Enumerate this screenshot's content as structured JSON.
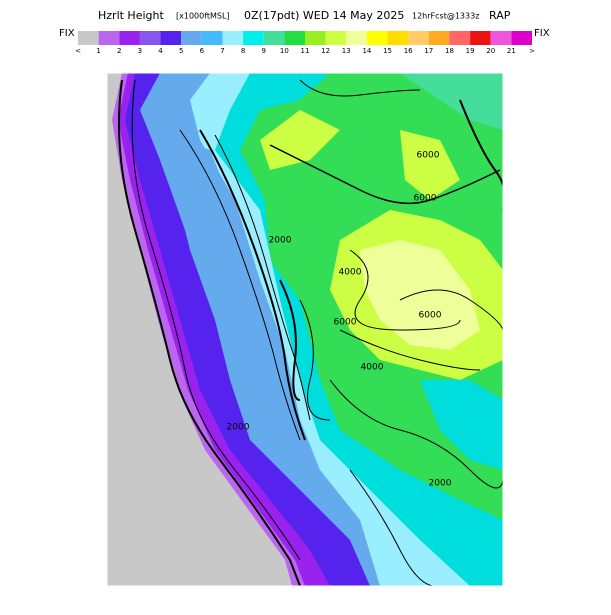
{
  "header": {
    "title": "Hzrlt Height",
    "units": "[x1000ftMSL]",
    "valid": "0Z(17pdt) WED 14 May 2025",
    "forecast": "12hrFcst@1333z",
    "model": "RAP"
  },
  "colorbar": {
    "left_label": "FIX",
    "right_label": "FIX",
    "labels": [
      "<",
      "1",
      "2",
      "3",
      "4",
      "5",
      "6",
      "7",
      "8",
      "9",
      "10",
      "11",
      "12",
      "13",
      "14",
      "15",
      "16",
      "17",
      "18",
      "19",
      "20",
      "21",
      ">"
    ],
    "colors": [
      "#c8c8c8",
      "#bb66ee",
      "#9922ee",
      "#8855ee",
      "#5522ee",
      "#66aaee",
      "#44bbff",
      "#99eeff",
      "#00eeee",
      "#44dd99",
      "#22dd44",
      "#99ee22",
      "#ccff44",
      "#eeff99",
      "#ffff00",
      "#ffdd00",
      "#ffcc66",
      "#ffaa22",
      "#ff6666",
      "#ee1111",
      "#ee55dd",
      "#dd00cc"
    ]
  },
  "contour_labels": [
    "6000",
    "6000",
    "6000",
    "4000",
    "4000",
    "6000",
    "2000",
    "2000",
    "2000"
  ]
}
